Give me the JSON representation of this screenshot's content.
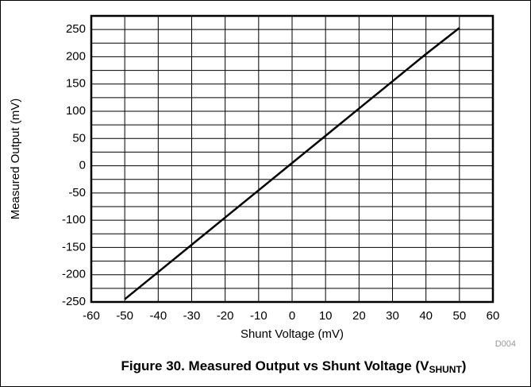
{
  "chart_data": {
    "type": "line",
    "x_label": "Shunt Voltage (mV)",
    "y_label": "Measured Output (mV)",
    "code": "D004",
    "caption": "Figure 30. Measured Output vs Shunt Voltage (V",
    "caption_subscript": "SHUNT",
    "caption_end": ")",
    "x": [
      -50,
      -40,
      -30,
      -20,
      -10,
      0,
      10,
      20,
      30,
      40,
      50
    ],
    "series": [
      {
        "color": "#000000",
        "values": [
          -245,
          -195,
          -145,
          -95,
          -45,
          5,
          55,
          105,
          155,
          205,
          253
        ]
      }
    ],
    "xlim": [
      -60,
      60
    ],
    "xticks": [
      -60,
      -50,
      -40,
      -30,
      -20,
      -10,
      0,
      10,
      20,
      30,
      40,
      50,
      60
    ],
    "ylim": [
      -250,
      275
    ],
    "yticks": [
      -250,
      -200,
      -150,
      -100,
      -50,
      0,
      50,
      100,
      150,
      200,
      250
    ],
    "y_minor_ticks": [
      -225,
      -175,
      -125,
      -75,
      -25,
      25,
      75,
      125,
      175,
      225,
      275
    ],
    "grid": true
  }
}
